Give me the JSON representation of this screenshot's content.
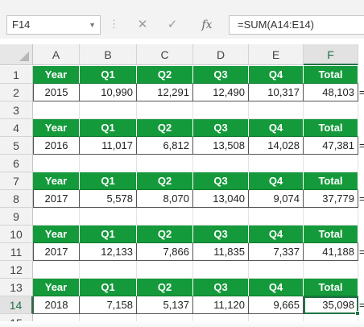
{
  "formula_bar": {
    "name_box": "F14",
    "formula": "=SUM(A14:E14)",
    "fx_label": "fx"
  },
  "columns": [
    "A",
    "B",
    "C",
    "D",
    "E",
    "F"
  ],
  "selected_column": "F",
  "selected_row": "14",
  "row_numbers": [
    "1",
    "2",
    "3",
    "4",
    "5",
    "6",
    "7",
    "8",
    "9",
    "10",
    "11",
    "12",
    "13",
    "14",
    "15"
  ],
  "header_labels": [
    "Year",
    "Q1",
    "Q2",
    "Q3",
    "Q4",
    "Total"
  ],
  "tables": [
    {
      "header_row": "1",
      "data_row": "2",
      "values": [
        "2015",
        "10,990",
        "12,291",
        "12,490",
        "10,317",
        "48,103"
      ]
    },
    {
      "header_row": "4",
      "data_row": "5",
      "values": [
        "2016",
        "11,017",
        "6,812",
        "13,508",
        "14,028",
        "47,381"
      ]
    },
    {
      "header_row": "7",
      "data_row": "8",
      "values": [
        "2017",
        "5,578",
        "8,070",
        "13,040",
        "9,074",
        "37,779"
      ]
    },
    {
      "header_row": "10",
      "data_row": "11",
      "values": [
        "2017",
        "12,133",
        "7,866",
        "11,835",
        "7,337",
        "41,188"
      ]
    },
    {
      "header_row": "13",
      "data_row": "14",
      "values": [
        "2018",
        "7,158",
        "5,137",
        "11,120",
        "9,665",
        "35,098"
      ]
    }
  ],
  "overflow_char": "=",
  "colors": {
    "header_green": "#149a3b",
    "excel_green": "#217346"
  }
}
